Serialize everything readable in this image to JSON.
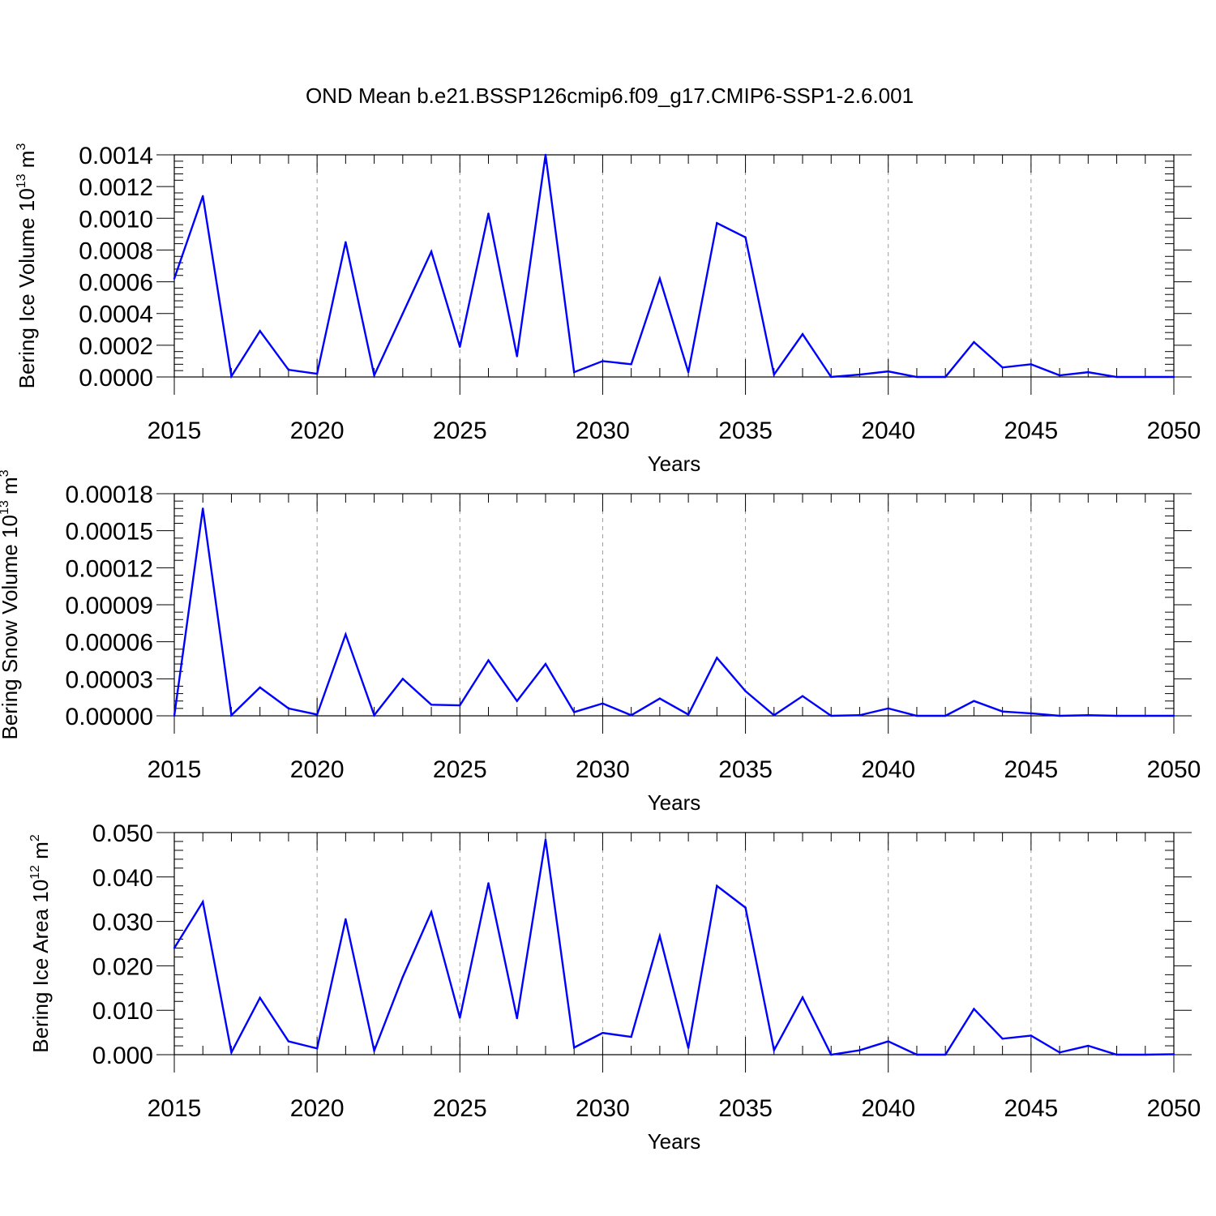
{
  "title": "OND Mean b.e21.BSSP126cmip6.f09_g17.CMIP6-SSP1-2.6.001",
  "colors": {
    "series": "#0000ff",
    "axis": "#000000",
    "grid": "#9a9a9a"
  },
  "chart_data": [
    {
      "type": "line",
      "title": "OND Mean b.e21.BSSP126cmip6.f09_g17.CMIP6-SSP1-2.6.001",
      "xlabel": "Years",
      "ylabel": {
        "prefix": "Bering Ice Volume 10",
        "exponent": "13",
        "unit": " m",
        "unit_exponent": "3"
      },
      "xlim": [
        2015,
        2050
      ],
      "ylim": [
        0,
        0.0014
      ],
      "xticks": [
        2015,
        2020,
        2025,
        2030,
        2035,
        2040,
        2045,
        2050
      ],
      "yticks": [
        "0.0000",
        "0.0002",
        "0.0004",
        "0.0006",
        "0.0008",
        "0.0010",
        "0.0012",
        "0.0014"
      ],
      "grid": "vertical dashed at major x ticks",
      "series": [
        {
          "x": [
            2015,
            2016,
            2017,
            2018,
            2019,
            2020,
            2021,
            2022,
            2023,
            2024,
            2025,
            2026,
            2027,
            2028,
            2029,
            2030,
            2031,
            2032,
            2033,
            2034,
            2035,
            2036,
            2037,
            2038,
            2039,
            2040,
            2041,
            2042,
            2043,
            2044,
            2045,
            2046,
            2047,
            2048,
            2049,
            2050
          ],
          "values": [
            0.00062,
            0.00114,
            5e-06,
            0.00029,
            4.5e-05,
            2e-05,
            0.00085,
            1e-05,
            0.0004,
            0.00079,
            0.00019,
            0.00103,
            0.00013,
            0.0014,
            3e-05,
            0.0001,
            8e-05,
            0.00062,
            3e-05,
            0.00097,
            0.00088,
            1.5e-05,
            0.00027,
            0.0,
            1.5e-05,
            3.5e-05,
            0.0,
            0.0,
            0.00022,
            6e-05,
            8e-05,
            1e-05,
            3e-05,
            0.0,
            0.0,
            0.0
          ]
        }
      ]
    },
    {
      "type": "line",
      "xlabel": "Years",
      "ylabel": {
        "prefix": "Bering Snow Volume 10",
        "exponent": "13",
        "unit": " m",
        "unit_exponent": "3"
      },
      "xlim": [
        2015,
        2050
      ],
      "ylim": [
        0,
        0.00018
      ],
      "xticks": [
        2015,
        2020,
        2025,
        2030,
        2035,
        2040,
        2045,
        2050
      ],
      "yticks": [
        "0.00000",
        "0.00003",
        "0.00006",
        "0.00009",
        "0.00012",
        "0.00015",
        "0.00018"
      ],
      "grid": "vertical dashed at major x ticks",
      "series": [
        {
          "x": [
            2015,
            2016,
            2017,
            2018,
            2019,
            2020,
            2021,
            2022,
            2023,
            2024,
            2025,
            2026,
            2027,
            2028,
            2029,
            2030,
            2031,
            2032,
            2033,
            2034,
            2035,
            2036,
            2037,
            2038,
            2039,
            2040,
            2041,
            2042,
            2043,
            2044,
            2045,
            2046,
            2047,
            2048,
            2049,
            2050
          ],
          "values": [
            0.0,
            0.000168,
            5e-07,
            2.3e-05,
            6e-06,
            1e-06,
            6.6e-05,
            5e-07,
            3e-05,
            9e-06,
            8.5e-06,
            4.5e-05,
            1.2e-05,
            4.2e-05,
            3e-06,
            1e-05,
            5e-07,
            1.4e-05,
            1e-06,
            4.7e-05,
            2e-05,
            5e-07,
            1.6e-05,
            0.0,
            5e-07,
            6e-06,
            0.0,
            0.0,
            1.2e-05,
            3.5e-06,
            2e-06,
            0.0,
            5e-07,
            0.0,
            0.0,
            0.0
          ]
        }
      ]
    },
    {
      "type": "line",
      "xlabel": "Years",
      "ylabel": {
        "prefix": "Bering Ice Area 10",
        "exponent": "12",
        "unit": " m",
        "unit_exponent": "2"
      },
      "xlim": [
        2015,
        2050
      ],
      "ylim": [
        0,
        0.05
      ],
      "xticks": [
        2015,
        2020,
        2025,
        2030,
        2035,
        2040,
        2045,
        2050
      ],
      "yticks": [
        "0.000",
        "0.010",
        "0.020",
        "0.030",
        "0.040",
        "0.050"
      ],
      "grid": "vertical dashed at major x ticks",
      "series": [
        {
          "x": [
            2015,
            2016,
            2017,
            2018,
            2019,
            2020,
            2021,
            2022,
            2023,
            2024,
            2025,
            2026,
            2027,
            2028,
            2029,
            2030,
            2031,
            2032,
            2033,
            2034,
            2035,
            2036,
            2037,
            2038,
            2039,
            2040,
            2041,
            2042,
            2043,
            2044,
            2045,
            2046,
            2047,
            2048,
            2049,
            2050
          ],
          "values": [
            0.024,
            0.0344,
            0.0005,
            0.0128,
            0.003,
            0.0014,
            0.0305,
            0.0009,
            0.0175,
            0.0321,
            0.0083,
            0.0386,
            0.0082,
            0.0484,
            0.0016,
            0.0049,
            0.004,
            0.0267,
            0.0015,
            0.038,
            0.0331,
            0.001,
            0.0129,
            0.0,
            0.001,
            0.003,
            0.0,
            0.0,
            0.0103,
            0.0036,
            0.0043,
            0.0005,
            0.002,
            0.0,
            0.0,
            0.0001
          ]
        }
      ]
    }
  ]
}
